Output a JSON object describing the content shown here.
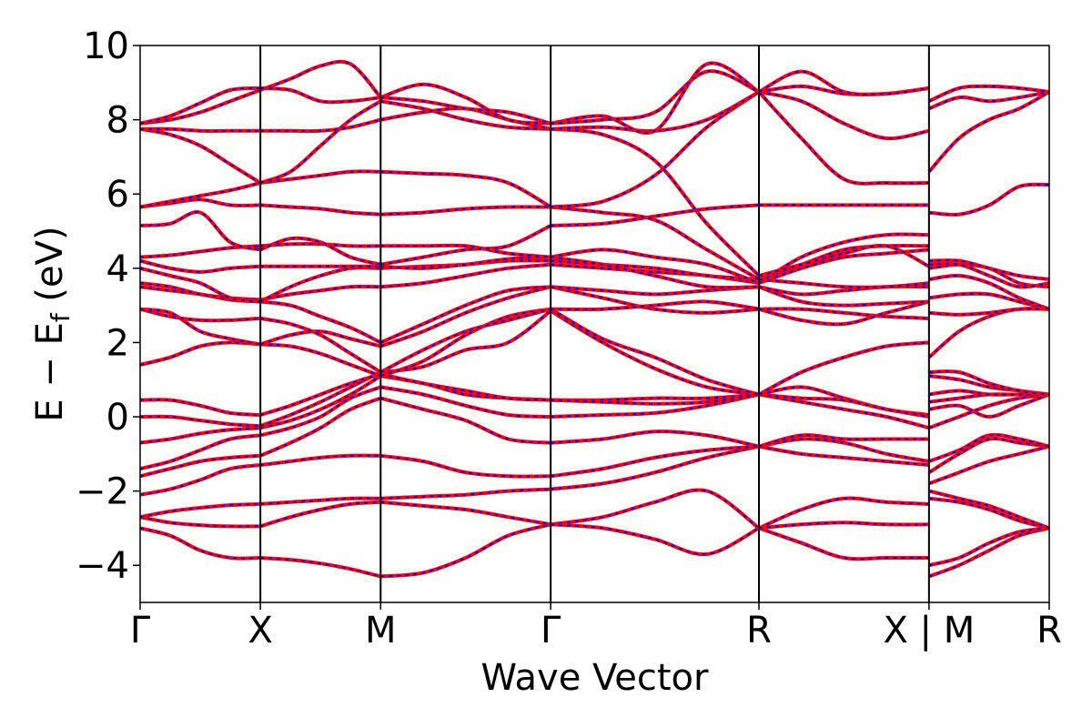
{
  "chart_data": {
    "type": "line",
    "title": "",
    "xlabel": "Wave Vector",
    "ylabel": "E − E_f (eV)",
    "ylabel_main": "E − E",
    "ylabel_sub": "f",
    "ylabel_tail": " (eV)",
    "ylim": [
      -5,
      10
    ],
    "yticks": [
      10,
      8,
      6,
      4,
      2,
      0,
      -2,
      -4
    ],
    "ytick_labels": [
      "10",
      "8",
      "6",
      "4",
      "2",
      "0",
      "−2",
      "−4"
    ],
    "kpath_ticks": [
      {
        "x": 0.0,
        "label": "Γ"
      },
      {
        "x": 0.5,
        "label": "X"
      },
      {
        "x": 1.0,
        "label": "M"
      },
      {
        "x": 1.707,
        "label": "Γ"
      },
      {
        "x": 2.573,
        "label": "R"
      },
      {
        "x": 3.28,
        "label": "X | M"
      },
      {
        "x": 3.78,
        "label": "R"
      }
    ],
    "xlim": [
      0,
      3.78
    ],
    "grid": false,
    "series_style": {
      "primary_color": "#ff0000",
      "overlay_color": "#0000ff",
      "overlay_dash": "dashed"
    },
    "segments": [
      {
        "x0": 0.0,
        "x1": 0.5,
        "bands": [
          [
            -3.0,
            -3.2,
            -3.6,
            -3.8,
            -3.8
          ],
          [
            -2.7,
            -2.85,
            -2.92,
            -2.95,
            -2.95
          ],
          [
            -2.7,
            -2.55,
            -2.45,
            -2.38,
            -2.35
          ],
          [
            -2.1,
            -1.95,
            -1.7,
            -1.4,
            -1.3
          ],
          [
            -1.6,
            -1.4,
            -1.2,
            -1.1,
            -1.05
          ],
          [
            -1.4,
            -1.2,
            -0.9,
            -0.6,
            -0.5
          ],
          [
            -0.7,
            -0.6,
            -0.45,
            -0.35,
            -0.3
          ],
          [
            0.0,
            0.0,
            -0.1,
            -0.2,
            -0.25
          ],
          [
            0.45,
            0.45,
            0.3,
            0.1,
            0.05
          ],
          [
            1.4,
            1.6,
            1.9,
            2.0,
            1.95
          ],
          [
            2.9,
            2.8,
            2.3,
            2.1,
            1.95
          ],
          [
            2.9,
            2.7,
            2.6,
            2.6,
            2.65
          ],
          [
            3.5,
            3.4,
            3.3,
            3.15,
            3.1
          ],
          [
            3.6,
            3.5,
            3.3,
            3.2,
            3.15
          ],
          [
            4.0,
            3.8,
            3.6,
            3.2,
            3.1
          ],
          [
            4.2,
            4.0,
            3.9,
            4.0,
            4.05
          ],
          [
            4.3,
            4.35,
            4.45,
            4.55,
            4.6
          ],
          [
            5.15,
            5.2,
            5.5,
            4.7,
            4.5
          ],
          [
            5.65,
            5.75,
            5.85,
            5.7,
            5.7
          ],
          [
            5.65,
            5.8,
            5.95,
            6.1,
            6.3
          ],
          [
            7.75,
            7.6,
            7.3,
            6.8,
            6.3
          ],
          [
            7.75,
            7.75,
            7.7,
            7.7,
            7.7
          ],
          [
            7.9,
            8.0,
            8.2,
            8.5,
            8.8
          ],
          [
            7.9,
            8.1,
            8.45,
            8.8,
            8.85
          ]
        ]
      },
      {
        "x0": 0.5,
        "x1": 1.0,
        "bands": [
          [
            -3.8,
            -3.85,
            -3.95,
            -4.1,
            -4.3
          ],
          [
            -2.95,
            -2.7,
            -2.5,
            -2.35,
            -2.3
          ],
          [
            -2.35,
            -2.3,
            -2.25,
            -2.2,
            -2.2
          ],
          [
            -1.3,
            -1.2,
            -1.1,
            -1.05,
            -1.05
          ],
          [
            -1.05,
            -0.7,
            -0.3,
            0.2,
            0.5
          ],
          [
            -0.5,
            -0.3,
            0.0,
            0.5,
            0.8
          ],
          [
            -0.3,
            -0.1,
            0.2,
            0.6,
            1.1
          ],
          [
            -0.25,
            0.05,
            0.4,
            0.8,
            1.2
          ],
          [
            0.05,
            0.3,
            0.6,
            0.9,
            1.15
          ],
          [
            1.95,
            1.9,
            1.7,
            1.4,
            1.1
          ],
          [
            1.95,
            2.2,
            2.3,
            2.1,
            1.9
          ],
          [
            2.65,
            2.5,
            2.2,
            1.7,
            1.2
          ],
          [
            3.1,
            3.0,
            2.7,
            2.4,
            2.0
          ],
          [
            3.15,
            3.3,
            3.4,
            3.5,
            3.5
          ],
          [
            3.1,
            3.5,
            3.8,
            4.0,
            4.0
          ],
          [
            4.05,
            4.05,
            4.05,
            4.05,
            4.05
          ],
          [
            4.6,
            4.65,
            4.65,
            4.6,
            4.6
          ],
          [
            4.5,
            4.8,
            4.7,
            4.3,
            4.1
          ],
          [
            5.7,
            5.65,
            5.6,
            5.5,
            5.45
          ],
          [
            6.3,
            6.4,
            6.5,
            6.6,
            6.6
          ],
          [
            6.3,
            6.6,
            7.3,
            8.0,
            8.5
          ],
          [
            7.7,
            7.7,
            7.7,
            7.8,
            8.0
          ],
          [
            8.8,
            9.1,
            9.45,
            9.5,
            8.6
          ],
          [
            8.85,
            8.8,
            8.5,
            8.5,
            8.6
          ]
        ]
      },
      {
        "x0": 1.0,
        "x1": 1.707,
        "bands": [
          [
            -4.3,
            -4.2,
            -3.8,
            -3.2,
            -2.9
          ],
          [
            -2.3,
            -2.4,
            -2.5,
            -2.7,
            -2.9
          ],
          [
            -2.2,
            -2.15,
            -2.1,
            -2.0,
            -1.95
          ],
          [
            -1.05,
            -1.2,
            -1.5,
            -1.6,
            -1.6
          ],
          [
            0.5,
            0.2,
            -0.1,
            -0.6,
            -0.7
          ],
          [
            0.8,
            0.6,
            0.3,
            0.05,
            0.0
          ],
          [
            1.1,
            0.9,
            0.6,
            0.5,
            0.45
          ],
          [
            1.2,
            1.35,
            1.8,
            2.0,
            2.85
          ],
          [
            1.15,
            0.9,
            0.7,
            0.5,
            0.45
          ],
          [
            1.1,
            1.5,
            2.2,
            2.7,
            2.9
          ],
          [
            1.9,
            2.3,
            2.8,
            3.2,
            3.5
          ],
          [
            1.2,
            1.8,
            2.3,
            2.6,
            2.9
          ],
          [
            2.0,
            2.5,
            3.0,
            3.4,
            3.5
          ],
          [
            3.5,
            3.6,
            3.8,
            4.0,
            4.1
          ],
          [
            4.0,
            4.05,
            4.1,
            4.2,
            4.2
          ],
          [
            4.05,
            4.0,
            4.1,
            4.25,
            4.3
          ],
          [
            4.6,
            4.6,
            4.6,
            4.4,
            4.3
          ],
          [
            4.1,
            4.3,
            4.5,
            4.6,
            5.15
          ],
          [
            5.45,
            5.5,
            5.6,
            5.65,
            5.65
          ],
          [
            6.6,
            6.55,
            6.5,
            6.3,
            5.65
          ],
          [
            8.5,
            8.3,
            8.0,
            7.8,
            7.75
          ],
          [
            8.0,
            8.2,
            8.3,
            8.0,
            7.75
          ],
          [
            8.6,
            8.95,
            8.6,
            8.0,
            7.9
          ],
          [
            8.6,
            8.5,
            8.3,
            8.2,
            7.9
          ]
        ]
      },
      {
        "x0": 1.707,
        "x1": 2.573,
        "bands": [
          [
            -2.9,
            -2.7,
            -2.3,
            -2.0,
            -3.0
          ],
          [
            -2.9,
            -3.0,
            -3.3,
            -3.7,
            -3.0
          ],
          [
            -1.95,
            -1.8,
            -1.5,
            -1.1,
            -0.8
          ],
          [
            -1.6,
            -1.4,
            -1.1,
            -0.9,
            -0.8
          ],
          [
            -0.7,
            -0.6,
            -0.4,
            -0.5,
            -0.8
          ],
          [
            0.0,
            0.05,
            0.1,
            0.3,
            0.6
          ],
          [
            0.45,
            0.45,
            0.5,
            0.5,
            0.6
          ],
          [
            2.85,
            2.0,
            1.3,
            0.8,
            0.6
          ],
          [
            0.45,
            0.4,
            0.35,
            0.4,
            0.6
          ],
          [
            2.9,
            2.1,
            1.6,
            1.0,
            0.6
          ],
          [
            3.5,
            3.2,
            2.9,
            2.8,
            2.9
          ],
          [
            2.9,
            2.9,
            3.0,
            3.1,
            2.9
          ],
          [
            3.5,
            3.4,
            3.3,
            3.4,
            3.5
          ],
          [
            4.1,
            4.0,
            3.9,
            3.8,
            3.6
          ],
          [
            4.2,
            4.1,
            4.0,
            3.8,
            3.7
          ],
          [
            4.3,
            4.1,
            3.8,
            3.5,
            3.5
          ],
          [
            4.3,
            4.5,
            4.3,
            4.1,
            3.6
          ],
          [
            5.15,
            5.2,
            5.4,
            5.6,
            5.7
          ],
          [
            5.65,
            5.5,
            5.3,
            4.5,
            3.7
          ],
          [
            5.65,
            5.8,
            6.5,
            7.8,
            8.75
          ],
          [
            7.75,
            7.6,
            6.9,
            5.2,
            3.8
          ],
          [
            7.75,
            7.8,
            7.7,
            8.0,
            8.75
          ],
          [
            7.9,
            8.1,
            7.7,
            9.5,
            8.75
          ],
          [
            7.9,
            8.0,
            8.2,
            9.3,
            8.75
          ]
        ]
      },
      {
        "x0": 2.573,
        "x1": 3.28,
        "bands": [
          [
            -3.0,
            -3.4,
            -3.8,
            -3.8,
            -3.8
          ],
          [
            -3.0,
            -2.5,
            -2.2,
            -2.3,
            -2.35
          ],
          [
            -3.0,
            -2.9,
            -2.85,
            -2.9,
            -2.9
          ],
          [
            -0.8,
            -0.6,
            -0.7,
            -1.0,
            -1.2
          ],
          [
            -0.8,
            -1.0,
            -1.1,
            -1.2,
            -1.3
          ],
          [
            -0.8,
            -0.5,
            -0.6,
            -0.6,
            -0.6
          ],
          [
            0.6,
            0.4,
            0.2,
            0.0,
            -0.3
          ],
          [
            0.6,
            0.8,
            0.5,
            0.2,
            0.05
          ],
          [
            0.6,
            0.5,
            0.45,
            0.2,
            0.0
          ],
          [
            0.6,
            1.2,
            1.6,
            1.9,
            2.0
          ],
          [
            2.9,
            2.9,
            2.8,
            2.7,
            2.65
          ],
          [
            2.9,
            2.6,
            2.5,
            2.8,
            3.1
          ],
          [
            3.5,
            3.1,
            3.0,
            3.05,
            3.1
          ],
          [
            3.6,
            4.0,
            4.3,
            4.4,
            4.5
          ],
          [
            3.7,
            4.1,
            4.5,
            4.6,
            4.6
          ],
          [
            3.5,
            3.3,
            3.4,
            3.5,
            3.5
          ],
          [
            3.6,
            4.3,
            4.7,
            4.9,
            4.9
          ],
          [
            5.7,
            5.7,
            5.7,
            5.7,
            5.7
          ],
          [
            3.7,
            3.6,
            3.5,
            3.5,
            3.6
          ],
          [
            8.75,
            8.9,
            8.7,
            8.7,
            8.85
          ],
          [
            3.8,
            4.1,
            4.4,
            4.6,
            4.05
          ],
          [
            8.75,
            8.5,
            7.9,
            7.5,
            7.7
          ],
          [
            8.75,
            7.5,
            6.4,
            6.3,
            6.3
          ],
          [
            8.75,
            9.3,
            8.75,
            8.7,
            8.85
          ]
        ]
      },
      {
        "x0": 3.28,
        "x1": 3.78,
        "bands": [
          [
            -4.3,
            -4.0,
            -3.6,
            -3.2,
            -3.0
          ],
          [
            -4.0,
            -3.8,
            -3.4,
            -3.1,
            -3.0
          ],
          [
            -2.2,
            -2.3,
            -2.5,
            -2.8,
            -3.0
          ],
          [
            -2.0,
            -2.2,
            -2.4,
            -2.7,
            -3.0
          ],
          [
            -1.8,
            -1.5,
            -1.2,
            -1.0,
            -0.8
          ],
          [
            -1.5,
            -1.0,
            -0.6,
            -0.7,
            -0.8
          ],
          [
            -1.2,
            -0.9,
            -0.5,
            -0.6,
            -0.8
          ],
          [
            -0.3,
            0.0,
            0.3,
            0.5,
            0.6
          ],
          [
            0.2,
            0.3,
            0.0,
            0.3,
            0.6
          ],
          [
            0.4,
            0.5,
            0.6,
            0.6,
            0.6
          ],
          [
            0.6,
            0.7,
            0.6,
            0.6,
            0.6
          ],
          [
            1.1,
            1.0,
            0.8,
            0.7,
            0.6
          ],
          [
            1.2,
            1.2,
            0.9,
            0.7,
            0.6
          ],
          [
            1.6,
            2.3,
            2.7,
            2.9,
            2.9
          ],
          [
            2.8,
            2.75,
            2.8,
            2.9,
            2.9
          ],
          [
            3.2,
            3.3,
            3.3,
            3.1,
            2.9
          ],
          [
            3.7,
            3.8,
            3.6,
            3.2,
            2.9
          ],
          [
            4.0,
            4.1,
            4.0,
            3.6,
            3.5
          ],
          [
            4.1,
            4.1,
            3.8,
            3.5,
            3.6
          ],
          [
            4.2,
            4.2,
            4.0,
            3.8,
            3.7
          ],
          [
            5.5,
            5.45,
            5.7,
            6.2,
            6.25
          ],
          [
            6.6,
            7.5,
            8.0,
            8.3,
            8.75
          ],
          [
            8.3,
            8.6,
            8.5,
            8.6,
            8.75
          ],
          [
            8.5,
            8.85,
            8.9,
            8.85,
            8.75
          ]
        ]
      }
    ]
  }
}
